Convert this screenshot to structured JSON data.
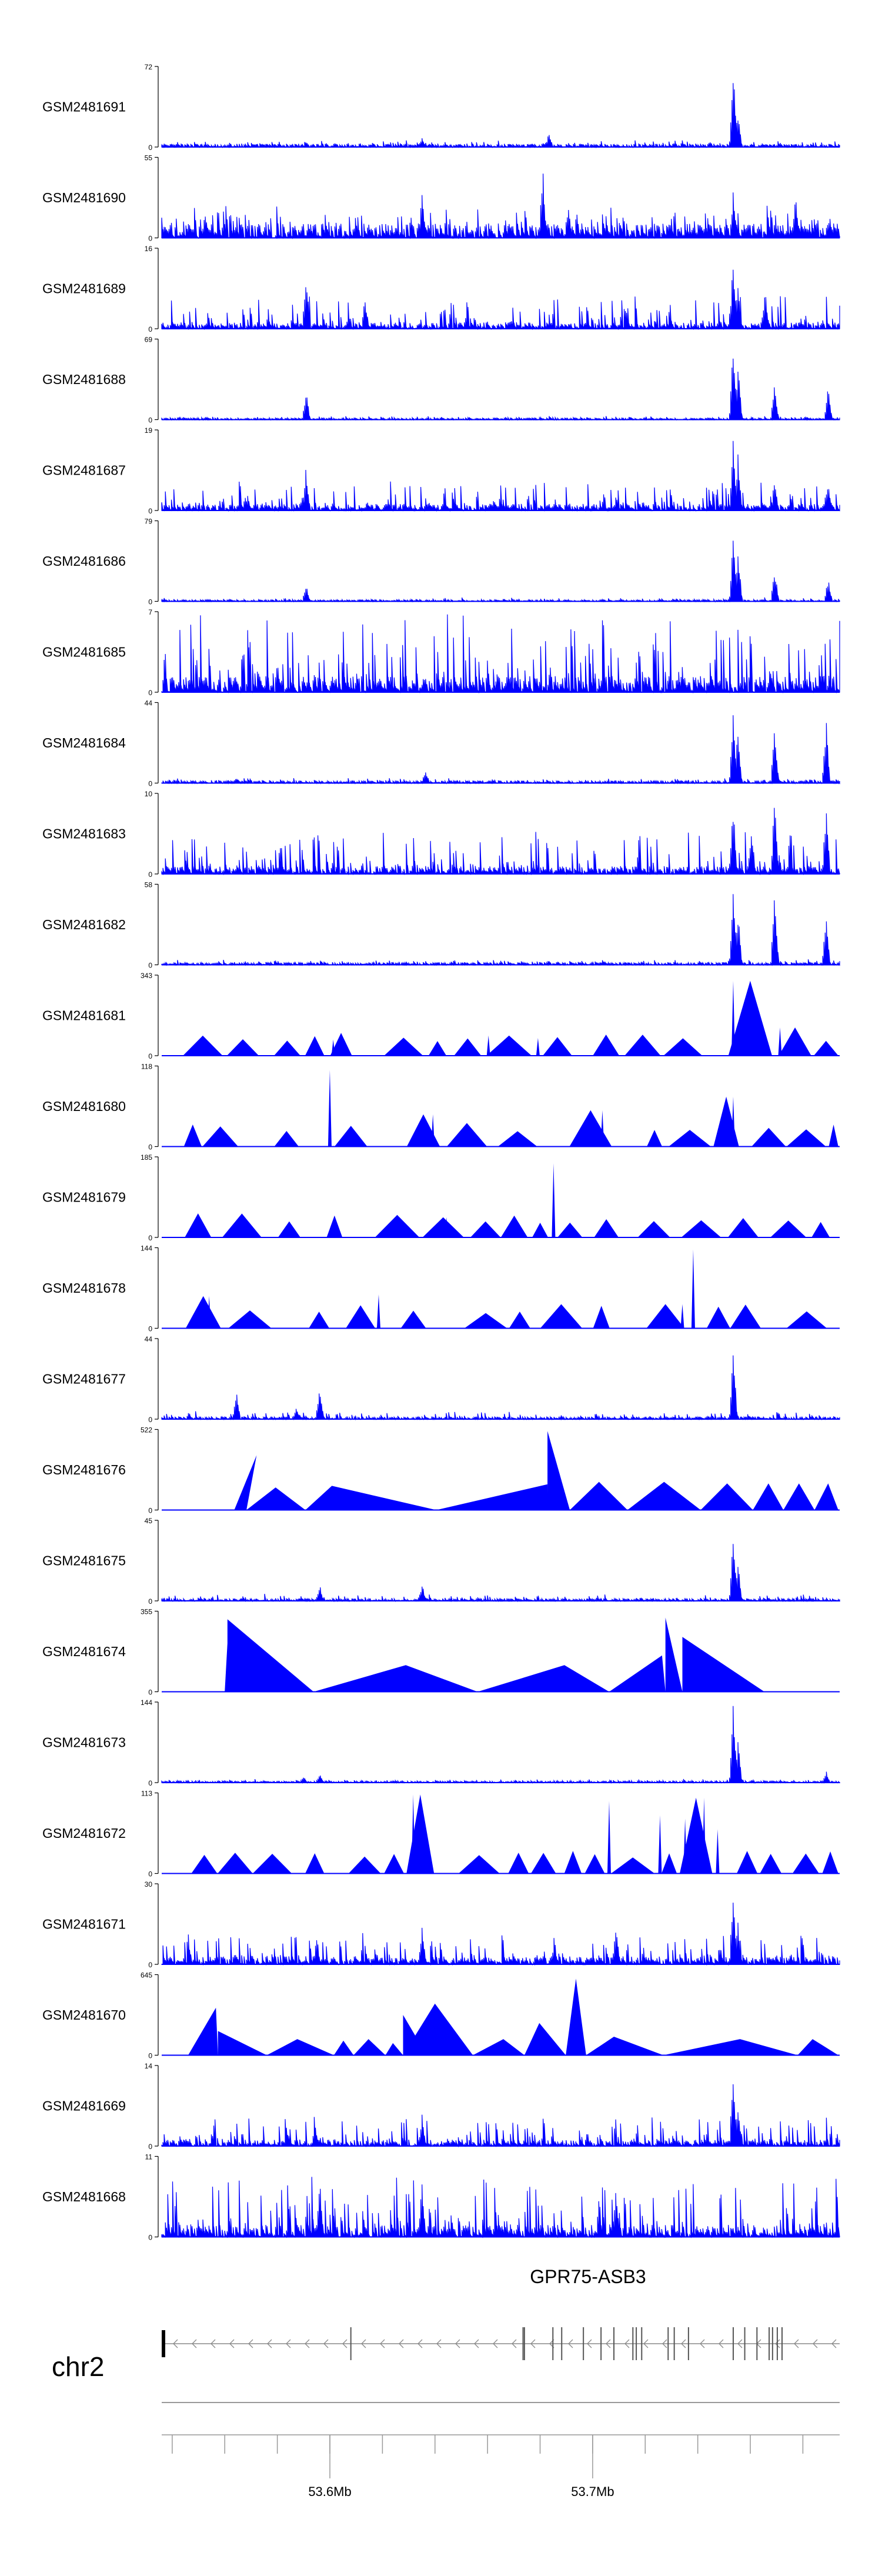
{
  "chart_data": {
    "type": "area",
    "description_free": true,
    "tracks": [
      {
        "label": "GSM2481691",
        "ymax": "72",
        "ymin": "0",
        "style": "dense",
        "base": 0.04,
        "noise": 0.05,
        "peaks": [
          [
            0.843,
            1.0
          ],
          [
            0.85,
            0.45
          ],
          [
            0.384,
            0.12
          ],
          [
            0.571,
            0.18
          ]
        ]
      },
      {
        "label": "GSM2481690",
        "ymax": "55",
        "ymin": "0",
        "style": "spiky",
        "base": 0.18,
        "noise": 0.25,
        "peaks": [
          [
            0.562,
            0.92
          ],
          [
            0.384,
            0.55
          ],
          [
            0.843,
            0.6
          ],
          [
            0.935,
            0.55
          ],
          [
            0.6,
            0.4
          ]
        ]
      },
      {
        "label": "GSM2481689",
        "ymax": "16",
        "ymin": "0",
        "style": "dense",
        "base": 0.08,
        "noise": 0.35,
        "peaks": [
          [
            0.213,
            0.75
          ],
          [
            0.843,
            0.95
          ],
          [
            0.85,
            0.6
          ],
          [
            0.89,
            0.5
          ],
          [
            0.3,
            0.4
          ]
        ]
      },
      {
        "label": "GSM2481688",
        "ymax": "69",
        "ymin": "0",
        "style": "dense",
        "base": 0.02,
        "noise": 0.03,
        "peaks": [
          [
            0.213,
            0.35
          ],
          [
            0.843,
            1.0
          ],
          [
            0.85,
            0.75
          ],
          [
            0.904,
            0.45
          ],
          [
            0.983,
            0.45
          ]
        ]
      },
      {
        "label": "GSM2481687",
        "ymax": "19",
        "ymin": "0",
        "style": "dense",
        "base": 0.08,
        "noise": 0.3,
        "peaks": [
          [
            0.213,
            0.55
          ],
          [
            0.843,
            1.0
          ],
          [
            0.85,
            0.7
          ],
          [
            0.904,
            0.4
          ],
          [
            0.983,
            0.4
          ]
        ]
      },
      {
        "label": "GSM2481686",
        "ymax": "79",
        "ymin": "0",
        "style": "dense",
        "base": 0.02,
        "noise": 0.03,
        "peaks": [
          [
            0.213,
            0.22
          ],
          [
            0.843,
            0.95
          ],
          [
            0.85,
            0.7
          ],
          [
            0.904,
            0.45
          ],
          [
            0.983,
            0.3
          ]
        ]
      },
      {
        "label": "GSM2481685",
        "ymax": "7",
        "ymin": "0",
        "style": "dense",
        "base": 0.2,
        "noise": 0.8,
        "peaks": []
      },
      {
        "label": "GSM2481684",
        "ymax": "44",
        "ymin": "0",
        "style": "dense",
        "base": 0.03,
        "noise": 0.04,
        "peaks": [
          [
            0.843,
            0.95
          ],
          [
            0.85,
            0.7
          ],
          [
            0.904,
            0.75
          ],
          [
            0.98,
            0.8
          ],
          [
            0.389,
            0.18
          ],
          [
            0.11,
            0.08
          ]
        ]
      },
      {
        "label": "GSM2481683",
        "ymax": "10",
        "ymin": "0",
        "style": "dense",
        "base": 0.1,
        "noise": 0.45,
        "peaks": [
          [
            0.843,
            0.9
          ],
          [
            0.904,
            0.95
          ],
          [
            0.98,
            0.9
          ],
          [
            0.87,
            0.6
          ]
        ]
      },
      {
        "label": "GSM2481682",
        "ymax": "58",
        "ymin": "0",
        "style": "dense",
        "base": 0.03,
        "noise": 0.04,
        "peaks": [
          [
            0.843,
            0.95
          ],
          [
            0.85,
            0.7
          ],
          [
            0.904,
            0.9
          ],
          [
            0.98,
            0.7
          ]
        ]
      },
      {
        "label": "GSM2481681",
        "ymax": "343",
        "ymin": "0",
        "style": "triangles",
        "base": 0.0,
        "noise": 0.0,
        "peaks": [
          [
            0.843,
            0.93
          ],
          [
            0.253,
            0.2
          ],
          [
            0.482,
            0.25
          ],
          [
            0.555,
            0.22
          ],
          [
            0.912,
            0.35
          ]
        ]
      },
      {
        "label": "GSM2481680",
        "ymax": "118",
        "ymin": "0",
        "style": "triangles",
        "base": 0.0,
        "noise": 0.0,
        "peaks": [
          [
            0.248,
            0.95
          ],
          [
            0.843,
            0.62
          ],
          [
            0.65,
            0.45
          ],
          [
            0.4,
            0.4
          ]
        ]
      },
      {
        "label": "GSM2481679",
        "ymax": "185",
        "ymin": "0",
        "style": "triangles",
        "base": 0.0,
        "noise": 0.0,
        "peaks": [
          [
            0.578,
            0.92
          ],
          [
            0.353,
            0.2
          ],
          [
            0.42,
            0.25
          ]
        ]
      },
      {
        "label": "GSM2481678",
        "ymax": "144",
        "ymin": "0",
        "style": "triangles",
        "base": 0.0,
        "noise": 0.0,
        "peaks": [
          [
            0.784,
            0.98
          ],
          [
            0.768,
            0.3
          ],
          [
            0.32,
            0.42
          ],
          [
            0.07,
            0.4
          ]
        ]
      },
      {
        "label": "GSM2481677",
        "ymax": "44",
        "ymin": "0",
        "style": "dense",
        "base": 0.03,
        "noise": 0.07,
        "peaks": [
          [
            0.843,
            0.98
          ],
          [
            0.11,
            0.38
          ],
          [
            0.233,
            0.42
          ],
          [
            0.199,
            0.15
          ]
        ]
      },
      {
        "label": "GSM2481676",
        "ymax": "522",
        "ymin": "0",
        "style": "bigtri",
        "base": 0.0,
        "noise": 0.0,
        "shapes": [
          [
            0.05,
            0.107,
            0.14,
            0.0
          ],
          [
            0.107,
            0.14,
            0.125,
            0.68
          ],
          [
            0.125,
            0.168,
            0.212,
            0.28
          ],
          [
            0.212,
            0.251,
            0.405,
            0.3
          ],
          [
            0.405,
            0.569,
            0.57,
            0.32
          ],
          [
            0.569,
            0.569,
            0.602,
            0.98
          ],
          [
            0.602,
            0.645,
            0.687,
            0.35
          ],
          [
            0.687,
            0.741,
            0.795,
            0.35
          ],
          [
            0.795,
            0.834,
            0.872,
            0.33
          ],
          [
            0.872,
            0.895,
            0.917,
            0.33
          ],
          [
            0.917,
            0.94,
            0.963,
            0.33
          ],
          [
            0.963,
            0.983,
            0.998,
            0.33
          ]
        ]
      },
      {
        "label": "GSM2481675",
        "ymax": "45",
        "ymin": "0",
        "style": "dense",
        "base": 0.03,
        "noise": 0.06,
        "peaks": [
          [
            0.843,
            0.98
          ],
          [
            0.85,
            0.5
          ],
          [
            0.233,
            0.2
          ],
          [
            0.384,
            0.22
          ]
        ]
      },
      {
        "label": "GSM2481674",
        "ymax": "355",
        "ymin": "0",
        "style": "bigtri",
        "base": 0.0,
        "noise": 0.0,
        "shapes": [
          [
            0.046,
            0.095,
            0.097,
            0.0
          ],
          [
            0.097,
            0.097,
            0.224,
            0.9
          ],
          [
            0.093,
            0.097,
            0.1,
            0.6
          ],
          [
            0.224,
            0.36,
            0.466,
            0.33
          ],
          [
            0.466,
            0.594,
            0.66,
            0.33
          ],
          [
            0.66,
            0.738,
            0.743,
            0.45
          ],
          [
            0.743,
            0.743,
            0.768,
            0.92
          ],
          [
            0.743,
            0.75,
            0.768,
            0.5
          ],
          [
            0.768,
            0.768,
            0.889,
            0.68
          ]
        ]
      },
      {
        "label": "GSM2481673",
        "ymax": "144",
        "ymin": "0",
        "style": "dense",
        "base": 0.02,
        "noise": 0.03,
        "peaks": [
          [
            0.843,
            0.98
          ],
          [
            0.85,
            0.55
          ],
          [
            0.233,
            0.12
          ],
          [
            0.98,
            0.15
          ],
          [
            0.209,
            0.08
          ]
        ]
      },
      {
        "label": "GSM2481672",
        "ymax": "113",
        "ymin": "0",
        "style": "triangles",
        "base": 0.0,
        "noise": 0.0,
        "peaks": [
          [
            0.371,
            0.98
          ],
          [
            0.66,
            0.9
          ],
          [
            0.735,
            0.72
          ],
          [
            0.772,
            0.68
          ],
          [
            0.8,
            0.94
          ],
          [
            0.82,
            0.55
          ]
        ]
      },
      {
        "label": "GSM2481671",
        "ymax": "30",
        "ymin": "0",
        "style": "dense",
        "base": 0.1,
        "noise": 0.3,
        "peaks": [
          [
            0.843,
            0.98
          ],
          [
            0.85,
            0.55
          ],
          [
            0.384,
            0.5
          ],
          [
            0.67,
            0.45
          ]
        ]
      },
      {
        "label": "GSM2481670",
        "ymax": "645",
        "ymin": "0",
        "style": "bigtri",
        "base": 0.0,
        "noise": 0.0,
        "shapes": [
          [
            0.039,
            0.08,
            0.083,
            0.59
          ],
          [
            0.083,
            0.083,
            0.155,
            0.3
          ],
          [
            0.155,
            0.2,
            0.254,
            0.2
          ],
          [
            0.254,
            0.268,
            0.283,
            0.18
          ],
          [
            0.283,
            0.305,
            0.33,
            0.2
          ],
          [
            0.33,
            0.341,
            0.356,
            0.15
          ],
          [
            0.356,
            0.356,
            0.391,
            0.5
          ],
          [
            0.356,
            0.403,
            0.459,
            0.64
          ],
          [
            0.459,
            0.504,
            0.535,
            0.2
          ],
          [
            0.535,
            0.557,
            0.596,
            0.4
          ],
          [
            0.596,
            0.611,
            0.626,
            0.95
          ],
          [
            0.626,
            0.667,
            0.74,
            0.23
          ],
          [
            0.74,
            0.853,
            0.938,
            0.2
          ],
          [
            0.938,
            0.96,
            0.998,
            0.2
          ]
        ]
      },
      {
        "label": "GSM2481669",
        "ymax": "14",
        "ymin": "0",
        "style": "dense",
        "base": 0.08,
        "noise": 0.3,
        "peaks": [
          [
            0.843,
            0.97
          ],
          [
            0.85,
            0.55
          ],
          [
            0.384,
            0.4
          ]
        ]
      },
      {
        "label": "GSM2481668",
        "ymax": "11",
        "ymin": "0",
        "style": "dense",
        "base": 0.15,
        "noise": 0.65,
        "peaks": [
          [
            0.233,
            0.8
          ],
          [
            0.384,
            0.7
          ],
          [
            0.67,
            0.68
          ]
        ]
      }
    ],
    "gene": {
      "name": "GPR75-ASB3",
      "strand": "-",
      "exons": [
        0.0,
        0.279,
        0.533,
        0.535,
        0.577,
        0.59,
        0.622,
        0.648,
        0.667,
        0.695,
        0.7,
        0.708,
        0.747,
        0.756,
        0.777,
        0.843,
        0.86,
        0.878,
        0.896,
        0.901,
        0.908,
        0.915
      ]
    },
    "chromosome": {
      "name": "chr2"
    },
    "axis": {
      "xmin": 53.536,
      "xmax": 53.794,
      "unit": "Mb",
      "ticks": [
        {
          "value": 53.6,
          "label": "53.6Mb"
        },
        {
          "value": 53.7,
          "label": "53.7Mb"
        }
      ],
      "minor_ticks": [
        53.54,
        53.56,
        53.58,
        53.6,
        53.62,
        53.64,
        53.66,
        53.68,
        53.7,
        53.72,
        53.74,
        53.76,
        53.78
      ]
    },
    "colors": {
      "signal": "#0000ff",
      "axis": "#000000",
      "grid": "#999999"
    }
  }
}
